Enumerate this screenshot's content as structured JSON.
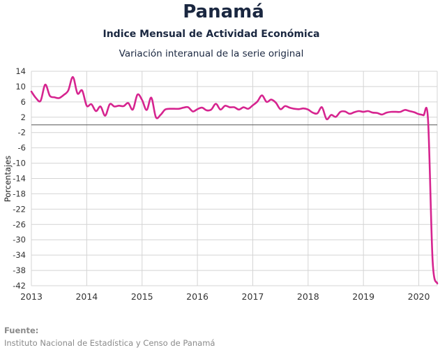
{
  "header": {
    "title": "Panamá",
    "subtitle": "Indice Mensual de  Actividad Económica",
    "subtitle2": "Variación interanual de la serie original"
  },
  "footer": {
    "source_label": "Fuente:",
    "source_text": "Instituto Nacional de Estadística y Censo de Panamá"
  },
  "colors": {
    "series": "#d6248f",
    "grid": "#d4d4d4",
    "zero_line": "#555555"
  },
  "chart_data": {
    "type": "line",
    "title": "Panamá",
    "subtitle": "Indice Mensual de  Actividad Económica",
    "ylabel": "Porcentajes",
    "xlabel": "",
    "ylim": [
      -42,
      14
    ],
    "yticks": [
      14,
      10,
      6,
      2,
      -2,
      -6,
      -10,
      -14,
      -18,
      -22,
      -26,
      -30,
      -34,
      -38,
      -42
    ],
    "xticks": [
      "2013",
      "2014",
      "2015",
      "2016",
      "2017",
      "2018",
      "2019",
      "2020"
    ],
    "xlim": [
      "2013-01",
      "2020-05"
    ],
    "grid": true,
    "series": [
      {
        "x": [
          "2013-01",
          "2013-02",
          "2013-03",
          "2013-04",
          "2013-05",
          "2013-06",
          "2013-07",
          "2013-08",
          "2013-09",
          "2013-10",
          "2013-11",
          "2013-12",
          "2014-01",
          "2014-02",
          "2014-03",
          "2014-04",
          "2014-05",
          "2014-06",
          "2014-07",
          "2014-08",
          "2014-09",
          "2014-10",
          "2014-11",
          "2014-12",
          "2015-01",
          "2015-02",
          "2015-03",
          "2015-04",
          "2015-05",
          "2015-06",
          "2015-07",
          "2015-08",
          "2015-09",
          "2015-10",
          "2015-11",
          "2015-12",
          "2016-01",
          "2016-02",
          "2016-03",
          "2016-04",
          "2016-05",
          "2016-06",
          "2016-07",
          "2016-08",
          "2016-09",
          "2016-10",
          "2016-11",
          "2016-12",
          "2017-01",
          "2017-02",
          "2017-03",
          "2017-04",
          "2017-05",
          "2017-06",
          "2017-07",
          "2017-08",
          "2017-09",
          "2017-10",
          "2017-11",
          "2017-12",
          "2018-01",
          "2018-02",
          "2018-03",
          "2018-04",
          "2018-05",
          "2018-06",
          "2018-07",
          "2018-08",
          "2018-09",
          "2018-10",
          "2018-11",
          "2018-12",
          "2019-01",
          "2019-02",
          "2019-03",
          "2019-04",
          "2019-05",
          "2019-06",
          "2019-07",
          "2019-08",
          "2019-09",
          "2019-10",
          "2019-11",
          "2019-12",
          "2020-01",
          "2020-02",
          "2020-03",
          "2020-04",
          "2020-05"
        ],
        "y": [
          8.7,
          7.0,
          6.3,
          10.5,
          7.6,
          7.2,
          7.0,
          7.8,
          9.0,
          12.5,
          8.2,
          9.0,
          5.0,
          5.4,
          3.6,
          4.8,
          2.4,
          5.4,
          4.8,
          5.0,
          4.9,
          5.7,
          4.0,
          7.9,
          6.5,
          3.9,
          7.1,
          2.0,
          2.6,
          4.0,
          4.2,
          4.2,
          4.2,
          4.5,
          4.6,
          3.5,
          4.1,
          4.5,
          3.8,
          4.0,
          5.5,
          4.0,
          5.0,
          4.6,
          4.6,
          4.0,
          4.6,
          4.2,
          5.1,
          6.1,
          7.7,
          6.0,
          6.6,
          5.8,
          4.1,
          4.9,
          4.5,
          4.2,
          4.1,
          4.3,
          4.0,
          3.2,
          3.0,
          4.6,
          1.5,
          2.6,
          2.1,
          3.4,
          3.5,
          2.9,
          3.3,
          3.6,
          3.4,
          3.6,
          3.2,
          3.1,
          2.7,
          3.2,
          3.4,
          3.4,
          3.4,
          3.9,
          3.6,
          3.3,
          2.8,
          2.5,
          1.4,
          -35.5,
          -41.4
        ]
      }
    ]
  }
}
